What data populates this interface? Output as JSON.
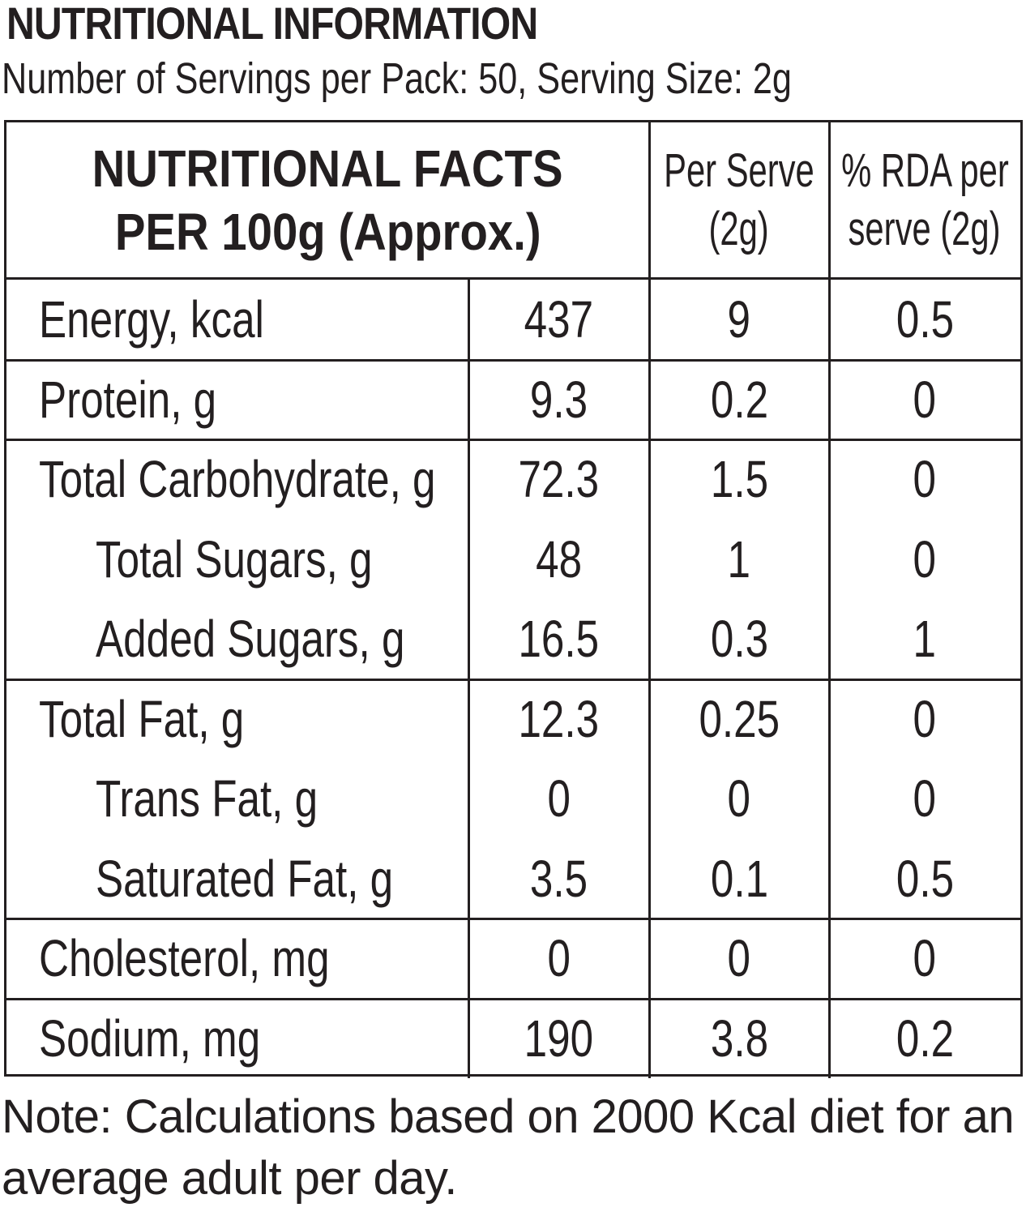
{
  "title": "NUTRITIONAL INFORMATION",
  "subtitle": "Number of Servings per Pack: 50, Serving Size: 2g",
  "table": {
    "header": [
      [
        "NUTRITIONAL FACTS",
        "PER 100g (Approx.)"
      ],
      [
        "Per Serve",
        "(2g)"
      ],
      [
        "% RDA per",
        "serve (2g)"
      ]
    ],
    "groups": [
      {
        "rows": [
          {
            "label": "Energy, kcal",
            "values": [
              "437",
              "9",
              "0.5"
            ]
          }
        ]
      },
      {
        "rows": [
          {
            "label": "Protein, g",
            "values": [
              "9.3",
              "0.2",
              "0"
            ]
          }
        ]
      },
      {
        "rows": [
          {
            "label": "Total Carbohydrate, g",
            "values": [
              "72.3",
              "1.5",
              "0"
            ]
          },
          {
            "label": "Total Sugars, g",
            "values": [
              "48",
              "1",
              "0"
            ]
          },
          {
            "label": "Added Sugars, g",
            "values": [
              "16.5",
              "0.3",
              "1"
            ]
          }
        ]
      },
      {
        "rows": [
          {
            "label": "Total Fat, g",
            "values": [
              "12.3",
              "0.25",
              "0"
            ]
          },
          {
            "label": "Trans Fat, g",
            "values": [
              "0",
              "0",
              "0"
            ]
          },
          {
            "label": "Saturated Fat, g",
            "values": [
              "3.5",
              "0.1",
              "0.5"
            ]
          }
        ]
      },
      {
        "rows": [
          {
            "label": "Cholesterol, mg",
            "values": [
              "0",
              "0",
              "0"
            ]
          }
        ]
      },
      {
        "rows": [
          {
            "label": "Sodium, mg",
            "values": [
              "190",
              "3.8",
              "0.2"
            ]
          }
        ]
      }
    ]
  },
  "note": "Note: Calculations based on 2000 Kcal diet for an average adult per day."
}
